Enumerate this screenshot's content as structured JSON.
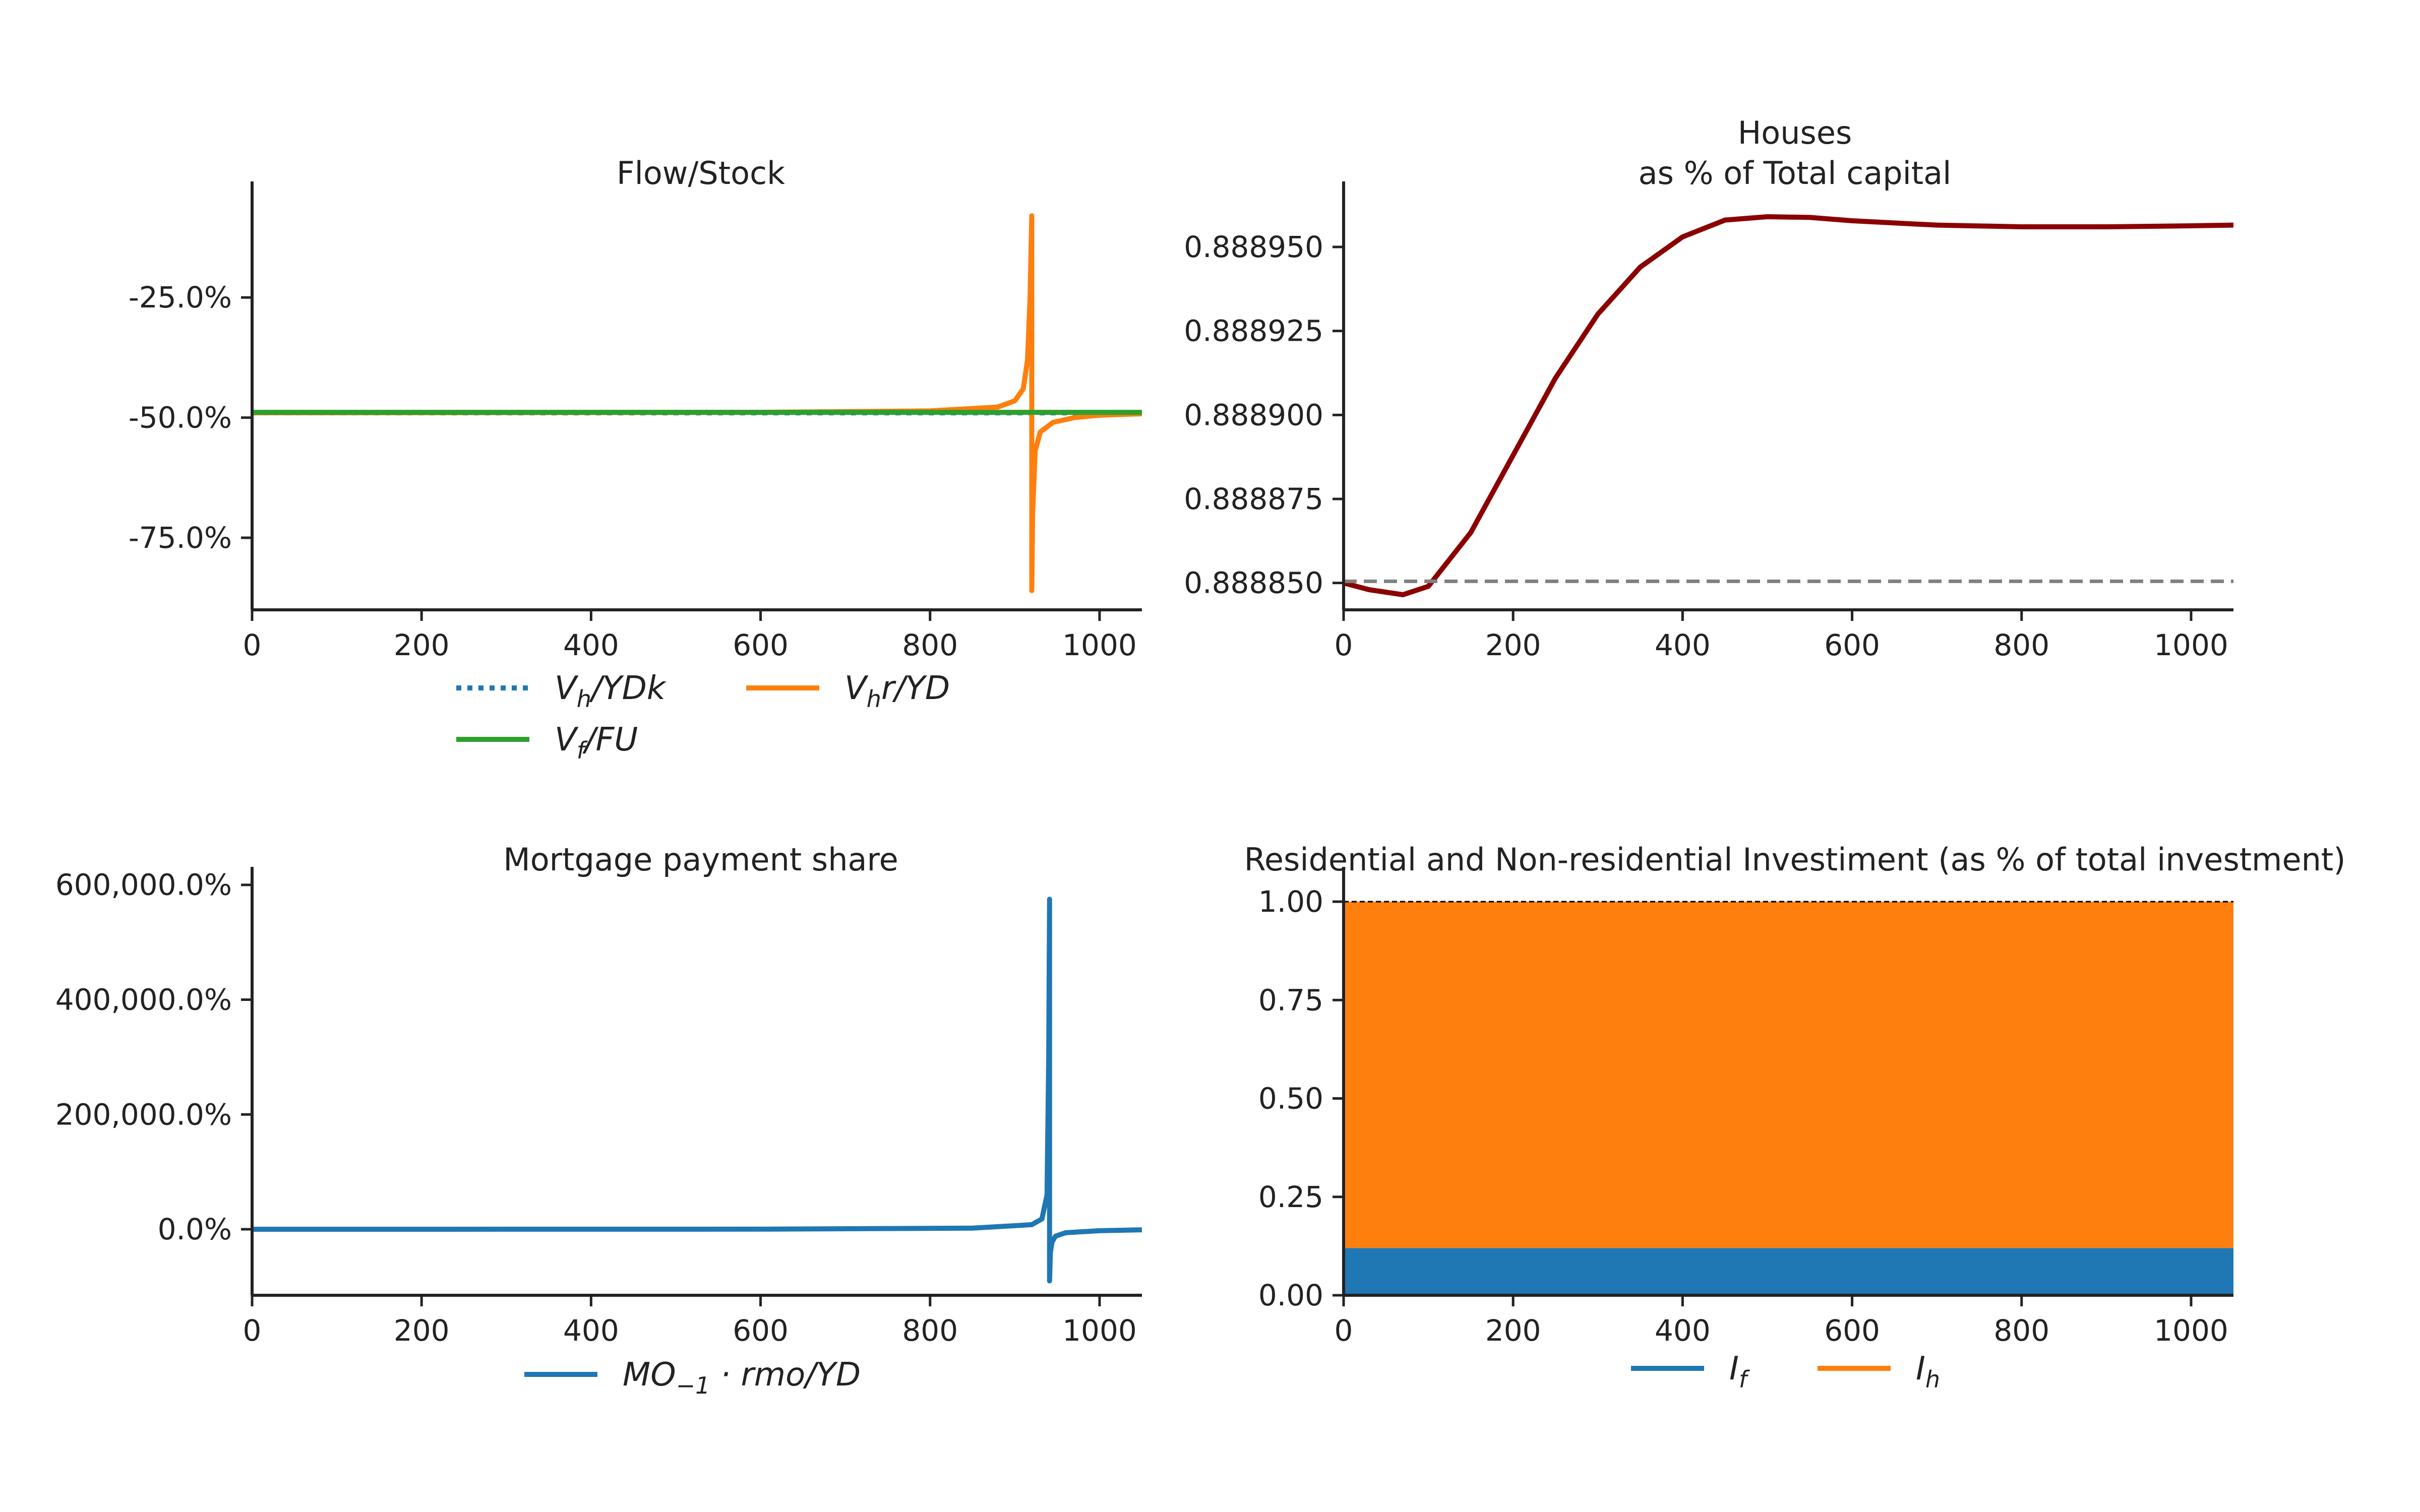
{
  "figure": {
    "background": "#ffffff"
  },
  "chart_data": [
    {
      "id": "flow_stock",
      "type": "line",
      "title": "Flow/Stock",
      "xlabel": "",
      "ylabel": "",
      "xlim": [
        0,
        1050
      ],
      "ylim": [
        -90,
        -4
      ],
      "x_ticks": [
        0,
        200,
        400,
        600,
        800,
        1000
      ],
      "x_tick_labels": [
        "0",
        "200",
        "400",
        "600",
        "800",
        "1000"
      ],
      "y_ticks": [
        -25,
        -50,
        -75
      ],
      "y_tick_labels": [
        "-25.0%",
        "-50.0%",
        "-75.0%"
      ],
      "grid": false,
      "legend_placement": "below",
      "series": [
        {
          "name": "V_h/YDk",
          "color": "#1f77b4",
          "style": "dotted",
          "x": [
            0,
            1050
          ],
          "y": [
            -49,
            -49
          ]
        },
        {
          "name": "V_hr/YD",
          "color": "#ff7f0e",
          "style": "solid",
          "x": [
            0,
            600,
            800,
            880,
            900,
            910,
            915,
            918,
            920,
            920,
            921,
            924,
            930,
            945,
            970,
            1000,
            1050
          ],
          "y": [
            -49,
            -48.9,
            -48.6,
            -47.8,
            -46.5,
            -44,
            -38,
            -25,
            -8,
            -86,
            -70,
            -57,
            -53,
            -51,
            -50,
            -49.5,
            -49.2
          ]
        },
        {
          "name": "V_f/FU",
          "color": "#2ca02c",
          "style": "solid",
          "x": [
            0,
            1050
          ],
          "y": [
            -48.9,
            -48.9
          ]
        }
      ],
      "legend": [
        {
          "text": "V_h/YDk",
          "base": "V",
          "sub": "h",
          "rest": "/YDk",
          "color": "#1f77b4",
          "style": "dotted"
        },
        {
          "text": "V_hr/YD",
          "base": "V",
          "sub": "h",
          "rest": "r/YD",
          "color": "#ff7f0e",
          "style": "solid"
        },
        {
          "text": "V_f/FU",
          "base": "V",
          "sub": "f",
          "rest": "/FU",
          "color": "#2ca02c",
          "style": "solid"
        }
      ]
    },
    {
      "id": "houses",
      "type": "line",
      "title": "Houses",
      "subtitle": "as % of Total capital",
      "xlabel": "",
      "ylabel": "",
      "xlim": [
        0,
        1050
      ],
      "ylim": [
        0.888842,
        0.888965
      ],
      "x_ticks": [
        0,
        200,
        400,
        600,
        800,
        1000
      ],
      "x_tick_labels": [
        "0",
        "200",
        "400",
        "600",
        "800",
        "1000"
      ],
      "y_ticks": [
        0.88885,
        0.888875,
        0.8889,
        0.888925,
        0.88895
      ],
      "y_tick_labels": [
        "0.888850",
        "0.888875",
        "0.888900",
        "0.888925",
        "0.888950"
      ],
      "grid": false,
      "series": [
        {
          "name": "",
          "color": "#8b0000",
          "style": "solid",
          "x": [
            0,
            30,
            70,
            100,
            150,
            200,
            250,
            300,
            350,
            400,
            450,
            500,
            550,
            600,
            700,
            800,
            900,
            1000,
            1050
          ],
          "y": [
            0.88885,
            0.888848,
            0.8888465,
            0.888849,
            0.888865,
            0.888888,
            0.888911,
            0.88893,
            0.888944,
            0.888953,
            0.888958,
            0.888959,
            0.8889588,
            0.8889578,
            0.8889565,
            0.888956,
            0.888956,
            0.8889563,
            0.8889565
          ]
        },
        {
          "name": "",
          "color": "#808080",
          "style": "dashed",
          "x": [
            0,
            1050
          ],
          "y": [
            0.8888505,
            0.8888505
          ]
        }
      ]
    },
    {
      "id": "mortgage_share",
      "type": "line",
      "title": "Mortgage payment share",
      "xlabel": "",
      "ylabel": "",
      "xlim": [
        0,
        1050
      ],
      "ylim": [
        -115000,
        605000
      ],
      "x_ticks": [
        0,
        200,
        400,
        600,
        800,
        1000
      ],
      "x_tick_labels": [
        "0",
        "200",
        "400",
        "600",
        "800",
        "1000"
      ],
      "y_ticks": [
        0,
        200000,
        400000,
        600000
      ],
      "y_tick_labels": [
        "0.0%",
        "200,000.0%",
        "400,000.0%",
        "600,000.0%"
      ],
      "grid": false,
      "legend_placement": "below",
      "series": [
        {
          "name": "MO_-1 · rmo/YD",
          "color": "#1f77b4",
          "style": "solid",
          "x": [
            0,
            600,
            850,
            920,
            932,
            938,
            940,
            941,
            941,
            942,
            944,
            948,
            960,
            1000,
            1050
          ],
          "y": [
            0,
            200,
            2000,
            8000,
            18000,
            60000,
            300000,
            575000,
            -90000,
            -40000,
            -22000,
            -12000,
            -6000,
            -2500,
            -1000
          ]
        }
      ],
      "legend": [
        {
          "text": "MO_-1 · rmo/YD",
          "base": "MO",
          "sub": "−1",
          "rest": " · rmo/YD",
          "color": "#1f77b4",
          "style": "solid"
        }
      ]
    },
    {
      "id": "investment",
      "type": "area",
      "title": "Residential and Non-residential Investiment (as % of total investment)",
      "xlabel": "",
      "ylabel": "",
      "xlim": [
        0,
        1050
      ],
      "ylim": [
        0,
        1.05
      ],
      "x_ticks": [
        0,
        200,
        400,
        600,
        800,
        1000
      ],
      "x_tick_labels": [
        "0",
        "200",
        "400",
        "600",
        "800",
        "1000"
      ],
      "y_ticks": [
        0,
        0.25,
        0.5,
        0.75,
        1.0
      ],
      "y_tick_labels": [
        "0.00",
        "0.25",
        "0.50",
        "0.75",
        "1.00"
      ],
      "grid": false,
      "legend_placement": "below",
      "stacked": true,
      "reference_line": {
        "y": 1.0,
        "color": "#000000",
        "style": "dashed"
      },
      "series": [
        {
          "name": "I_f",
          "color": "#1f77b4",
          "x": [
            0,
            1050
          ],
          "y": [
            0.12,
            0.12
          ]
        },
        {
          "name": "I_h",
          "color": "#ff7f0e",
          "x": [
            0,
            1050
          ],
          "y": [
            0.88,
            0.88
          ]
        }
      ],
      "legend": [
        {
          "text": "I_f",
          "base": "I",
          "sub": "f",
          "rest": "",
          "color": "#1f77b4",
          "style": "solid"
        },
        {
          "text": "I_h",
          "base": "I",
          "sub": "h",
          "rest": "",
          "color": "#ff7f0e",
          "style": "solid"
        }
      ]
    }
  ]
}
